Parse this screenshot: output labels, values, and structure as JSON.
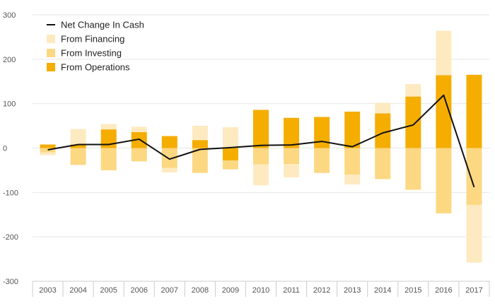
{
  "chart_data": {
    "type": "bar",
    "stacked": true,
    "categories": [
      "2003",
      "2004",
      "2005",
      "2006",
      "2007",
      "2008",
      "2009",
      "2010",
      "2011",
      "2012",
      "2013",
      "2014",
      "2015",
      "2016",
      "2017"
    ],
    "ylim": [
      -300,
      300
    ],
    "yticks": [
      300,
      200,
      100,
      0,
      -100,
      -200,
      -300
    ],
    "grid": true,
    "legend_position": "top-left",
    "series": [
      {
        "name": "From Operations",
        "color": "#f5ad00",
        "values": [
          8,
          8,
          42,
          36,
          27,
          18,
          -28,
          86,
          68,
          70,
          82,
          78,
          116,
          164,
          165
        ]
      },
      {
        "name": "From Investing",
        "color": "#fdd882",
        "values": [
          -10,
          -38,
          -50,
          -30,
          -45,
          -56,
          -20,
          -37,
          -36,
          -56,
          -60,
          -70,
          -94,
          -147,
          -128
        ]
      },
      {
        "name": "From Financing",
        "color": "#feeac0",
        "values": [
          -6,
          35,
          12,
          12,
          -10,
          32,
          47,
          -47,
          -30,
          0,
          -22,
          24,
          28,
          100,
          -130
        ]
      }
    ],
    "line": {
      "name": "Net Change In Cash",
      "color": "#111111",
      "values": [
        -4,
        8,
        8,
        20,
        -25,
        -3,
        1,
        6,
        7,
        15,
        3,
        34,
        52,
        119,
        -88
      ]
    }
  }
}
